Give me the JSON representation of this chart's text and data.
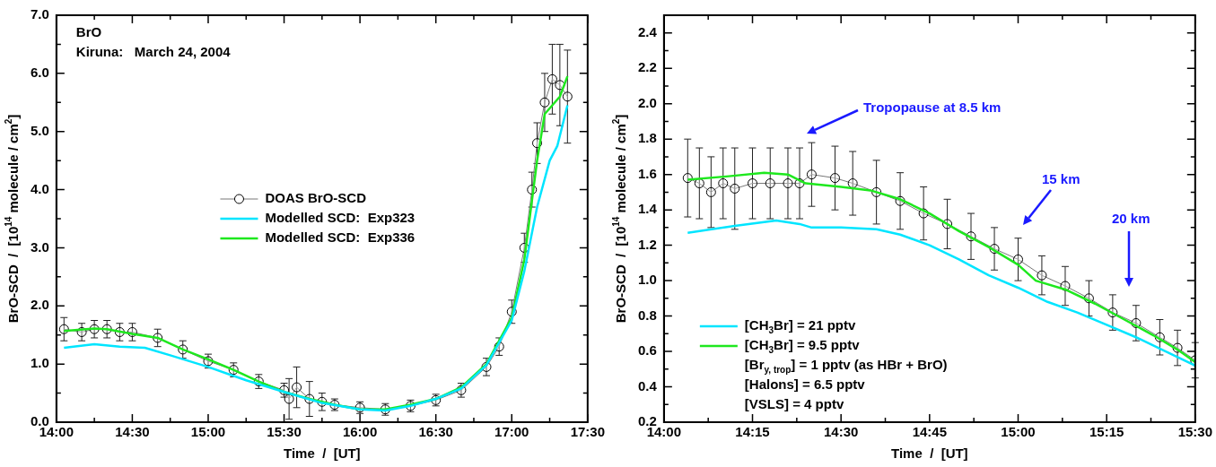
{
  "chart_data": [
    {
      "type": "line",
      "xlabel": "Time  /  [UT]",
      "ylabel": "BrO-SCD  /  [10$^{14}$ molecule / cm$^{2}$]",
      "xlim": [
        14,
        17.5
      ],
      "xticks": [
        {
          "value": 14,
          "label": "14:00"
        },
        {
          "value": 14.25,
          "label": null
        },
        {
          "value": 14.5,
          "label": "14:30"
        },
        {
          "value": 14.75,
          "label": null
        },
        {
          "value": 15,
          "label": "15:00"
        },
        {
          "value": 15.25,
          "label": null
        },
        {
          "value": 15.5,
          "label": "15:30"
        },
        {
          "value": 15.75,
          "label": null
        },
        {
          "value": 16,
          "label": "16:00"
        },
        {
          "value": 16.25,
          "label": null
        },
        {
          "value": 16.5,
          "label": "16:30"
        },
        {
          "value": 16.75,
          "label": null
        },
        {
          "value": 17,
          "label": "17:00"
        },
        {
          "value": 17.25,
          "label": null
        },
        {
          "value": 17.5,
          "label": "17:30"
        }
      ],
      "ylim": [
        0,
        7
      ],
      "yticks": [
        {
          "value": 0,
          "label": "0.0"
        },
        {
          "value": 0.5,
          "label": null
        },
        {
          "value": 1,
          "label": "1.0"
        },
        {
          "value": 1.5,
          "label": null
        },
        {
          "value": 2,
          "label": "2.0"
        },
        {
          "value": 2.5,
          "label": null
        },
        {
          "value": 3,
          "label": "3.0"
        },
        {
          "value": 3.5,
          "label": null
        },
        {
          "value": 4,
          "label": "4.0"
        },
        {
          "value": 4.5,
          "label": null
        },
        {
          "value": 5,
          "label": "5.0"
        },
        {
          "value": 5.5,
          "label": null
        },
        {
          "value": 6,
          "label": "6.0"
        },
        {
          "value": 6.5,
          "label": null
        },
        {
          "value": 7,
          "label": "7.0"
        }
      ],
      "legend": "center",
      "annotations": [
        "BrO",
        "Kiruna:   March 24, 2004"
      ],
      "series": [
        {
          "name": "DOAS BrO-SCD",
          "color": "#000000",
          "marker": "circle",
          "x": [
            14.05,
            14.167,
            14.25,
            14.333,
            14.417,
            14.5,
            14.667,
            14.833,
            15.0,
            15.167,
            15.333,
            15.5,
            15.533,
            15.583,
            15.667,
            15.75,
            15.833,
            16.0,
            16.167,
            16.333,
            16.5,
            16.667,
            16.833,
            16.917,
            17.0,
            17.083,
            17.133,
            17.167,
            17.217,
            17.267,
            17.317,
            17.367
          ],
          "values": [
            1.6,
            1.55,
            1.6,
            1.6,
            1.55,
            1.55,
            1.45,
            1.25,
            1.05,
            0.9,
            0.7,
            0.55,
            0.4,
            0.6,
            0.4,
            0.35,
            0.3,
            0.25,
            0.22,
            0.28,
            0.38,
            0.55,
            0.95,
            1.3,
            1.9,
            3.0,
            4.0,
            4.8,
            5.5,
            5.9,
            5.8,
            5.6
          ],
          "errors": [
            0.2,
            0.15,
            0.15,
            0.15,
            0.15,
            0.15,
            0.15,
            0.15,
            0.12,
            0.12,
            0.12,
            0.12,
            0.35,
            0.35,
            0.3,
            0.15,
            0.1,
            0.1,
            0.1,
            0.1,
            0.1,
            0.12,
            0.15,
            0.15,
            0.2,
            0.25,
            0.3,
            0.35,
            0.5,
            0.6,
            0.7,
            0.8
          ]
        },
        {
          "name": "Modelled SCD:  Exp323",
          "color": "#00e5ff",
          "x": [
            14.05,
            14.25,
            14.417,
            14.583,
            14.75,
            15.0,
            15.25,
            15.5,
            15.75,
            16.0,
            16.167,
            16.333,
            16.5,
            16.667,
            16.833,
            17.0,
            17.083,
            17.167,
            17.25,
            17.3,
            17.367
          ],
          "values": [
            1.28,
            1.34,
            1.3,
            1.28,
            1.15,
            0.95,
            0.72,
            0.52,
            0.33,
            0.22,
            0.2,
            0.28,
            0.4,
            0.58,
            0.98,
            1.75,
            2.6,
            3.7,
            4.5,
            4.75,
            5.45
          ]
        },
        {
          "name": "Modelled SCD:  Exp336",
          "color": "#1ee81e",
          "x": [
            14.05,
            14.25,
            14.333,
            14.5,
            14.667,
            14.833,
            15.0,
            15.167,
            15.333,
            15.5,
            15.667,
            15.833,
            16.0,
            16.167,
            16.333,
            16.5,
            16.667,
            16.833,
            17.0,
            17.083,
            17.167,
            17.217,
            17.267,
            17.317,
            17.367
          ],
          "values": [
            1.57,
            1.61,
            1.6,
            1.52,
            1.45,
            1.25,
            1.08,
            0.9,
            0.7,
            0.52,
            0.4,
            0.3,
            0.22,
            0.22,
            0.3,
            0.4,
            0.6,
            1.0,
            1.8,
            2.8,
            4.5,
            5.3,
            5.45,
            5.6,
            5.95
          ]
        }
      ]
    },
    {
      "type": "line",
      "xlabel": "Time  /  [UT]",
      "ylabel": "BrO-SCD  /  [10$^{14}$ molecule / cm$^{2}$]",
      "xlim": [
        14,
        15.5
      ],
      "xticks": [
        {
          "value": 14,
          "label": "14:00"
        },
        {
          "value": 14.125,
          "label": null
        },
        {
          "value": 14.25,
          "label": "14:15"
        },
        {
          "value": 14.375,
          "label": null
        },
        {
          "value": 14.5,
          "label": "14:30"
        },
        {
          "value": 14.625,
          "label": null
        },
        {
          "value": 14.75,
          "label": "14:45"
        },
        {
          "value": 14.875,
          "label": null
        },
        {
          "value": 15,
          "label": "15:00"
        },
        {
          "value": 15.125,
          "label": null
        },
        {
          "value": 15.25,
          "label": "15:15"
        },
        {
          "value": 15.375,
          "label": null
        },
        {
          "value": 15.5,
          "label": "15:30"
        }
      ],
      "ylim": [
        0.2,
        2.5
      ],
      "yticks": [
        {
          "value": 0.2,
          "label": "0.2"
        },
        {
          "value": 0.3,
          "label": null
        },
        {
          "value": 0.4,
          "label": "0.4"
        },
        {
          "value": 0.5,
          "label": null
        },
        {
          "value": 0.6,
          "label": "0.6"
        },
        {
          "value": 0.7,
          "label": null
        },
        {
          "value": 0.8,
          "label": "0.8"
        },
        {
          "value": 0.9,
          "label": null
        },
        {
          "value": 1.0,
          "label": "1.0"
        },
        {
          "value": 1.1,
          "label": null
        },
        {
          "value": 1.2,
          "label": "1.2"
        },
        {
          "value": 1.3,
          "label": null
        },
        {
          "value": 1.4,
          "label": "1.4"
        },
        {
          "value": 1.5,
          "label": null
        },
        {
          "value": 1.6,
          "label": "1.6"
        },
        {
          "value": 1.7,
          "label": null
        },
        {
          "value": 1.8,
          "label": "1.8"
        },
        {
          "value": 1.9,
          "label": null
        },
        {
          "value": 2.0,
          "label": "2.0"
        },
        {
          "value": 2.1,
          "label": null
        },
        {
          "value": 2.2,
          "label": "2.2"
        },
        {
          "value": 2.3,
          "label": null
        },
        {
          "value": 2.4,
          "label": "2.4"
        }
      ],
      "legend": "bottom left",
      "annotations": [
        "Tropopause at 8.5 km",
        "15 km",
        "20 km",
        "[Br$_{y, trop}$] = 1 pptv (as HBr + BrO)",
        "[Halons] = 6.5 pptv",
        "[VSLS] = 4 pptv"
      ],
      "series": [
        {
          "color": "#000000",
          "marker": "circle",
          "x": [
            14.067,
            14.1,
            14.133,
            14.167,
            14.2,
            14.25,
            14.3,
            14.35,
            14.383,
            14.417,
            14.483,
            14.533,
            14.6,
            14.667,
            14.733,
            14.8,
            14.867,
            14.933,
            15.0,
            15.067,
            15.133,
            15.2,
            15.267,
            15.333,
            15.4,
            15.45,
            15.5
          ],
          "values": [
            1.58,
            1.55,
            1.5,
            1.55,
            1.52,
            1.55,
            1.55,
            1.55,
            1.55,
            1.6,
            1.58,
            1.55,
            1.5,
            1.45,
            1.38,
            1.32,
            1.25,
            1.18,
            1.12,
            1.03,
            0.97,
            0.9,
            0.82,
            0.76,
            0.68,
            0.62,
            0.55
          ],
          "errors": [
            0.22,
            0.2,
            0.2,
            0.2,
            0.23,
            0.2,
            0.2,
            0.2,
            0.2,
            0.18,
            0.18,
            0.18,
            0.18,
            0.16,
            0.15,
            0.14,
            0.13,
            0.12,
            0.12,
            0.11,
            0.11,
            0.1,
            0.1,
            0.1,
            0.1,
            0.1,
            0.1
          ]
        },
        {
          "name": "[CH$_{3}$Br] = 21 pptv",
          "color": "#00e5ff",
          "x": [
            14.067,
            14.2,
            14.317,
            14.383,
            14.417,
            14.5,
            14.6,
            14.667,
            14.75,
            14.833,
            14.917,
            15.0,
            15.083,
            15.167,
            15.25,
            15.333,
            15.417,
            15.5
          ],
          "values": [
            1.27,
            1.31,
            1.34,
            1.32,
            1.3,
            1.3,
            1.29,
            1.26,
            1.2,
            1.12,
            1.03,
            0.96,
            0.88,
            0.82,
            0.75,
            0.68,
            0.6,
            0.52
          ]
        },
        {
          "name": "[CH$_{3}$Br] = 9.5 pptv",
          "color": "#1ee81e",
          "x": [
            14.067,
            14.183,
            14.283,
            14.35,
            14.4,
            14.5,
            14.583,
            14.667,
            14.75,
            14.833,
            14.917,
            15.0,
            15.05,
            15.133,
            15.217,
            15.3,
            15.383,
            15.45,
            15.5
          ],
          "values": [
            1.57,
            1.59,
            1.61,
            1.6,
            1.55,
            1.53,
            1.51,
            1.46,
            1.38,
            1.28,
            1.19,
            1.09,
            1.0,
            0.95,
            0.87,
            0.78,
            0.69,
            0.61,
            0.54
          ]
        }
      ]
    }
  ]
}
